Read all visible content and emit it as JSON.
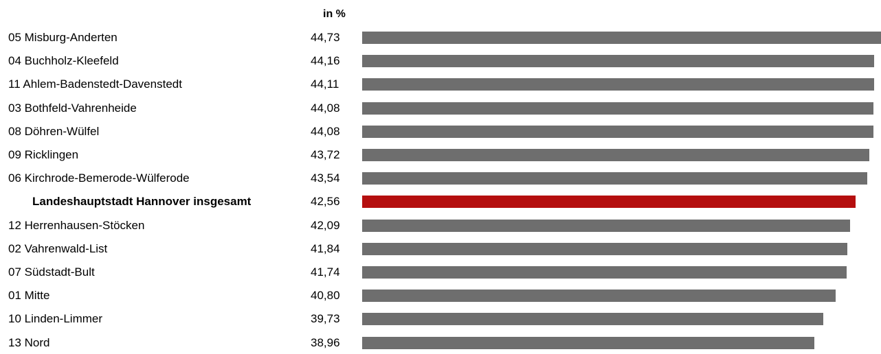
{
  "chart_data": {
    "type": "bar",
    "orientation": "horizontal",
    "unit_label": "in %",
    "categories": [
      "05 Misburg-Anderten",
      "04 Buchholz-Kleefeld",
      "11 Ahlem-Badenstedt-Davenstedt",
      "03 Bothfeld-Vahrenheide",
      "08 Döhren-Wülfel",
      "09 Ricklingen",
      "06 Kirchrode-Bemerode-Wülferode",
      "Landeshauptstadt Hannover insgesamt",
      "12 Herrenhausen-Stöcken",
      "02 Vahrenwald-List",
      "07 Südstadt-Bult",
      "01 Mitte",
      "10 Linden-Limmer",
      "13 Nord"
    ],
    "value_labels": [
      "44,73",
      "44,16",
      "44,11",
      "44,08",
      "44,08",
      "43,72",
      "43,54",
      "42,56",
      "42,09",
      "41,84",
      "41,74",
      "40,80",
      "39,73",
      "38,96"
    ],
    "values": [
      44.73,
      44.16,
      44.11,
      44.08,
      44.08,
      43.72,
      43.54,
      42.56,
      42.09,
      41.84,
      41.74,
      40.8,
      39.73,
      38.96
    ],
    "highlight_index": 7,
    "bar_color": "#6e6e6e",
    "highlight_color": "#b50f0f",
    "xlim": [
      0,
      44.73
    ],
    "grid": false,
    "legend": "none"
  }
}
